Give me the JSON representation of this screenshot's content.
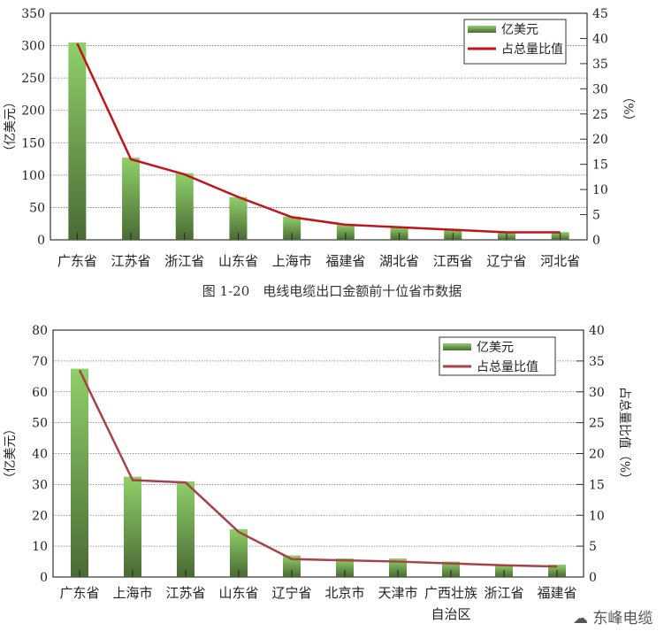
{
  "caption": "图 1-20　电线电缆出口金额前十位省市数据",
  "watermark": "东峰电缆",
  "chart_data": [
    {
      "type": "bar+line",
      "categories": [
        "广东省",
        "江苏省",
        "浙江省",
        "山东省",
        "上海市",
        "福建省",
        "湖北省",
        "江西省",
        "辽宁省",
        "河北省"
      ],
      "series": [
        {
          "name": "亿美元",
          "type": "bar",
          "axis": "left",
          "values": [
            305,
            127,
            103,
            66,
            36,
            24,
            20,
            17,
            12,
            12
          ],
          "color": "#6fa845"
        },
        {
          "name": "占总量比值",
          "type": "line",
          "axis": "right",
          "values": [
            39,
            16,
            13,
            8.5,
            4.5,
            3,
            2.5,
            2,
            1.5,
            1.5
          ],
          "color": "#c0141c"
        }
      ],
      "ylabel": "（亿美元）",
      "y2label": "（%）",
      "ylim": [
        0,
        350
      ],
      "y2lim": [
        0,
        45
      ],
      "yticks": [
        0,
        50,
        100,
        150,
        200,
        250,
        300,
        350
      ],
      "y2ticks": [
        0,
        5,
        10,
        15,
        20,
        25,
        30,
        35,
        40,
        45
      ],
      "grid": true,
      "legend": "top-right"
    },
    {
      "type": "bar+line",
      "categories": [
        "广东省",
        "上海市",
        "江苏省",
        "山东省",
        "辽宁省",
        "北京市",
        "天津市",
        "广西壮族\n自治区",
        "浙江省",
        "福建省"
      ],
      "series": [
        {
          "name": "亿美元",
          "type": "bar",
          "axis": "left",
          "values": [
            67.5,
            32.5,
            31,
            15.5,
            7,
            6,
            6,
            5,
            4,
            4
          ],
          "color": "#6fa845"
        },
        {
          "name": "占总量比值",
          "type": "line",
          "axis": "right",
          "values": [
            33.5,
            15.7,
            15.3,
            7.3,
            2.9,
            2.7,
            2.5,
            2.2,
            1.9,
            1.7
          ],
          "color": "#a8424a"
        }
      ],
      "ylabel": "（亿美元）",
      "y2label": "占总量比值（%）",
      "ylim": [
        0,
        80
      ],
      "y2lim": [
        0,
        40
      ],
      "yticks": [
        0,
        10,
        20,
        30,
        40,
        50,
        60,
        70,
        80
      ],
      "y2ticks": [
        0,
        5,
        10,
        15,
        20,
        25,
        30,
        35,
        40
      ],
      "grid": true,
      "legend": "top-right"
    }
  ]
}
